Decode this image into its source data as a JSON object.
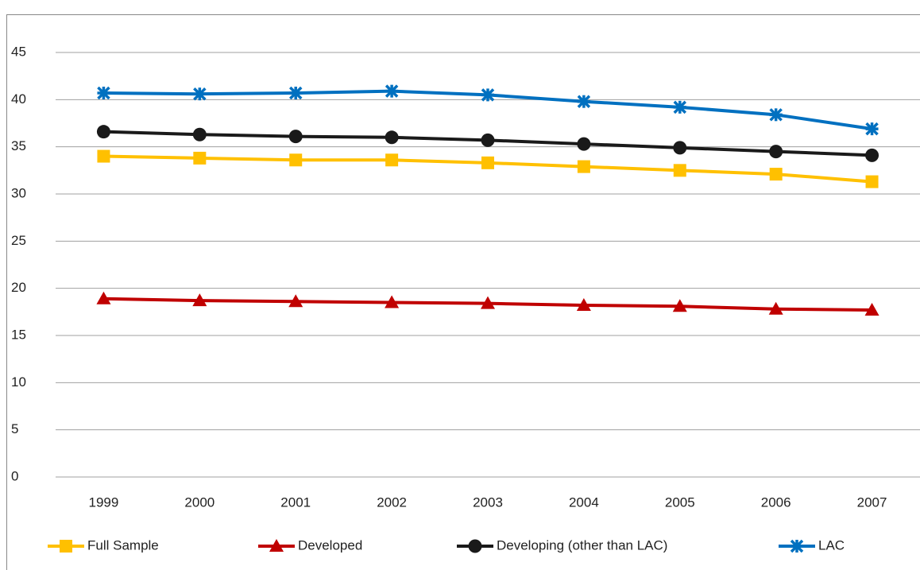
{
  "chart_data": {
    "type": "line",
    "categories": [
      "1999",
      "2000",
      "2001",
      "2002",
      "2003",
      "2004",
      "2005",
      "2006",
      "2007"
    ],
    "series": [
      {
        "name": "Full Sample",
        "color": "#ffc000",
        "marker": "square",
        "values": [
          34.0,
          33.8,
          33.6,
          33.6,
          33.3,
          32.9,
          32.5,
          32.1,
          31.3
        ]
      },
      {
        "name": "Developed",
        "color": "#c00000",
        "marker": "triangle",
        "values": [
          18.9,
          18.7,
          18.6,
          18.5,
          18.4,
          18.2,
          18.1,
          17.8,
          17.7
        ]
      },
      {
        "name": "Developing (other than LAC)",
        "color": "#1a1a1a",
        "marker": "circle",
        "values": [
          36.6,
          36.3,
          36.1,
          36.0,
          35.7,
          35.3,
          34.9,
          34.5,
          34.1
        ]
      },
      {
        "name": "LAC",
        "color": "#0070c0",
        "marker": "star",
        "values": [
          40.7,
          40.6,
          40.7,
          40.9,
          40.5,
          39.8,
          39.2,
          38.4,
          36.9
        ]
      }
    ],
    "ylim": [
      0,
      45
    ],
    "yticks": [
      0,
      5,
      10,
      15,
      20,
      25,
      30,
      35,
      40,
      45
    ],
    "grid": true,
    "legend": "bottom"
  }
}
